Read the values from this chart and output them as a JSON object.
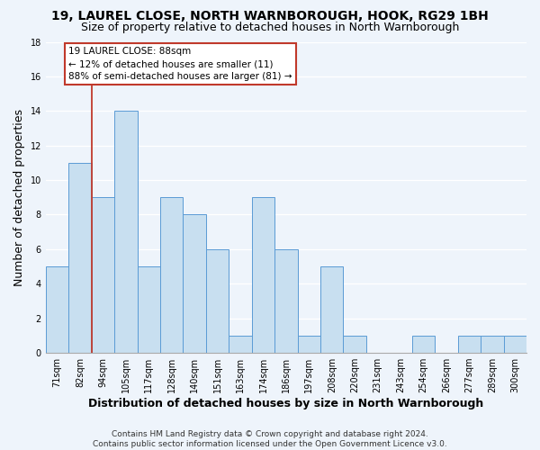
{
  "title": "19, LAUREL CLOSE, NORTH WARNBOROUGH, HOOK, RG29 1BH",
  "subtitle": "Size of property relative to detached houses in North Warnborough",
  "xlabel": "Distribution of detached houses by size in North Warnborough",
  "ylabel": "Number of detached properties",
  "bar_color": "#c8dff0",
  "bar_edge_color": "#5b9bd5",
  "categories": [
    "71sqm",
    "82sqm",
    "94sqm",
    "105sqm",
    "117sqm",
    "128sqm",
    "140sqm",
    "151sqm",
    "163sqm",
    "174sqm",
    "186sqm",
    "197sqm",
    "208sqm",
    "220sqm",
    "231sqm",
    "243sqm",
    "254sqm",
    "266sqm",
    "277sqm",
    "289sqm",
    "300sqm"
  ],
  "values": [
    5,
    11,
    9,
    14,
    5,
    9,
    8,
    6,
    1,
    9,
    6,
    1,
    5,
    1,
    0,
    0,
    1,
    0,
    1,
    1,
    1
  ],
  "ylim": [
    0,
    18
  ],
  "yticks": [
    0,
    2,
    4,
    6,
    8,
    10,
    12,
    14,
    16,
    18
  ],
  "vline_x_index": 1.5,
  "vline_color": "#c0392b",
  "ann_line1": "19 LAUREL CLOSE: 88sqm",
  "ann_line2": "← 12% of detached houses are smaller (11)",
  "ann_line3": "88% of semi-detached houses are larger (81) →",
  "footer_text": "Contains HM Land Registry data © Crown copyright and database right 2024.\nContains public sector information licensed under the Open Government Licence v3.0.",
  "background_color": "#eef4fb",
  "grid_color": "#ffffff",
  "title_fontsize": 10,
  "subtitle_fontsize": 9,
  "tick_fontsize": 7,
  "label_fontsize": 9,
  "footer_fontsize": 6.5
}
